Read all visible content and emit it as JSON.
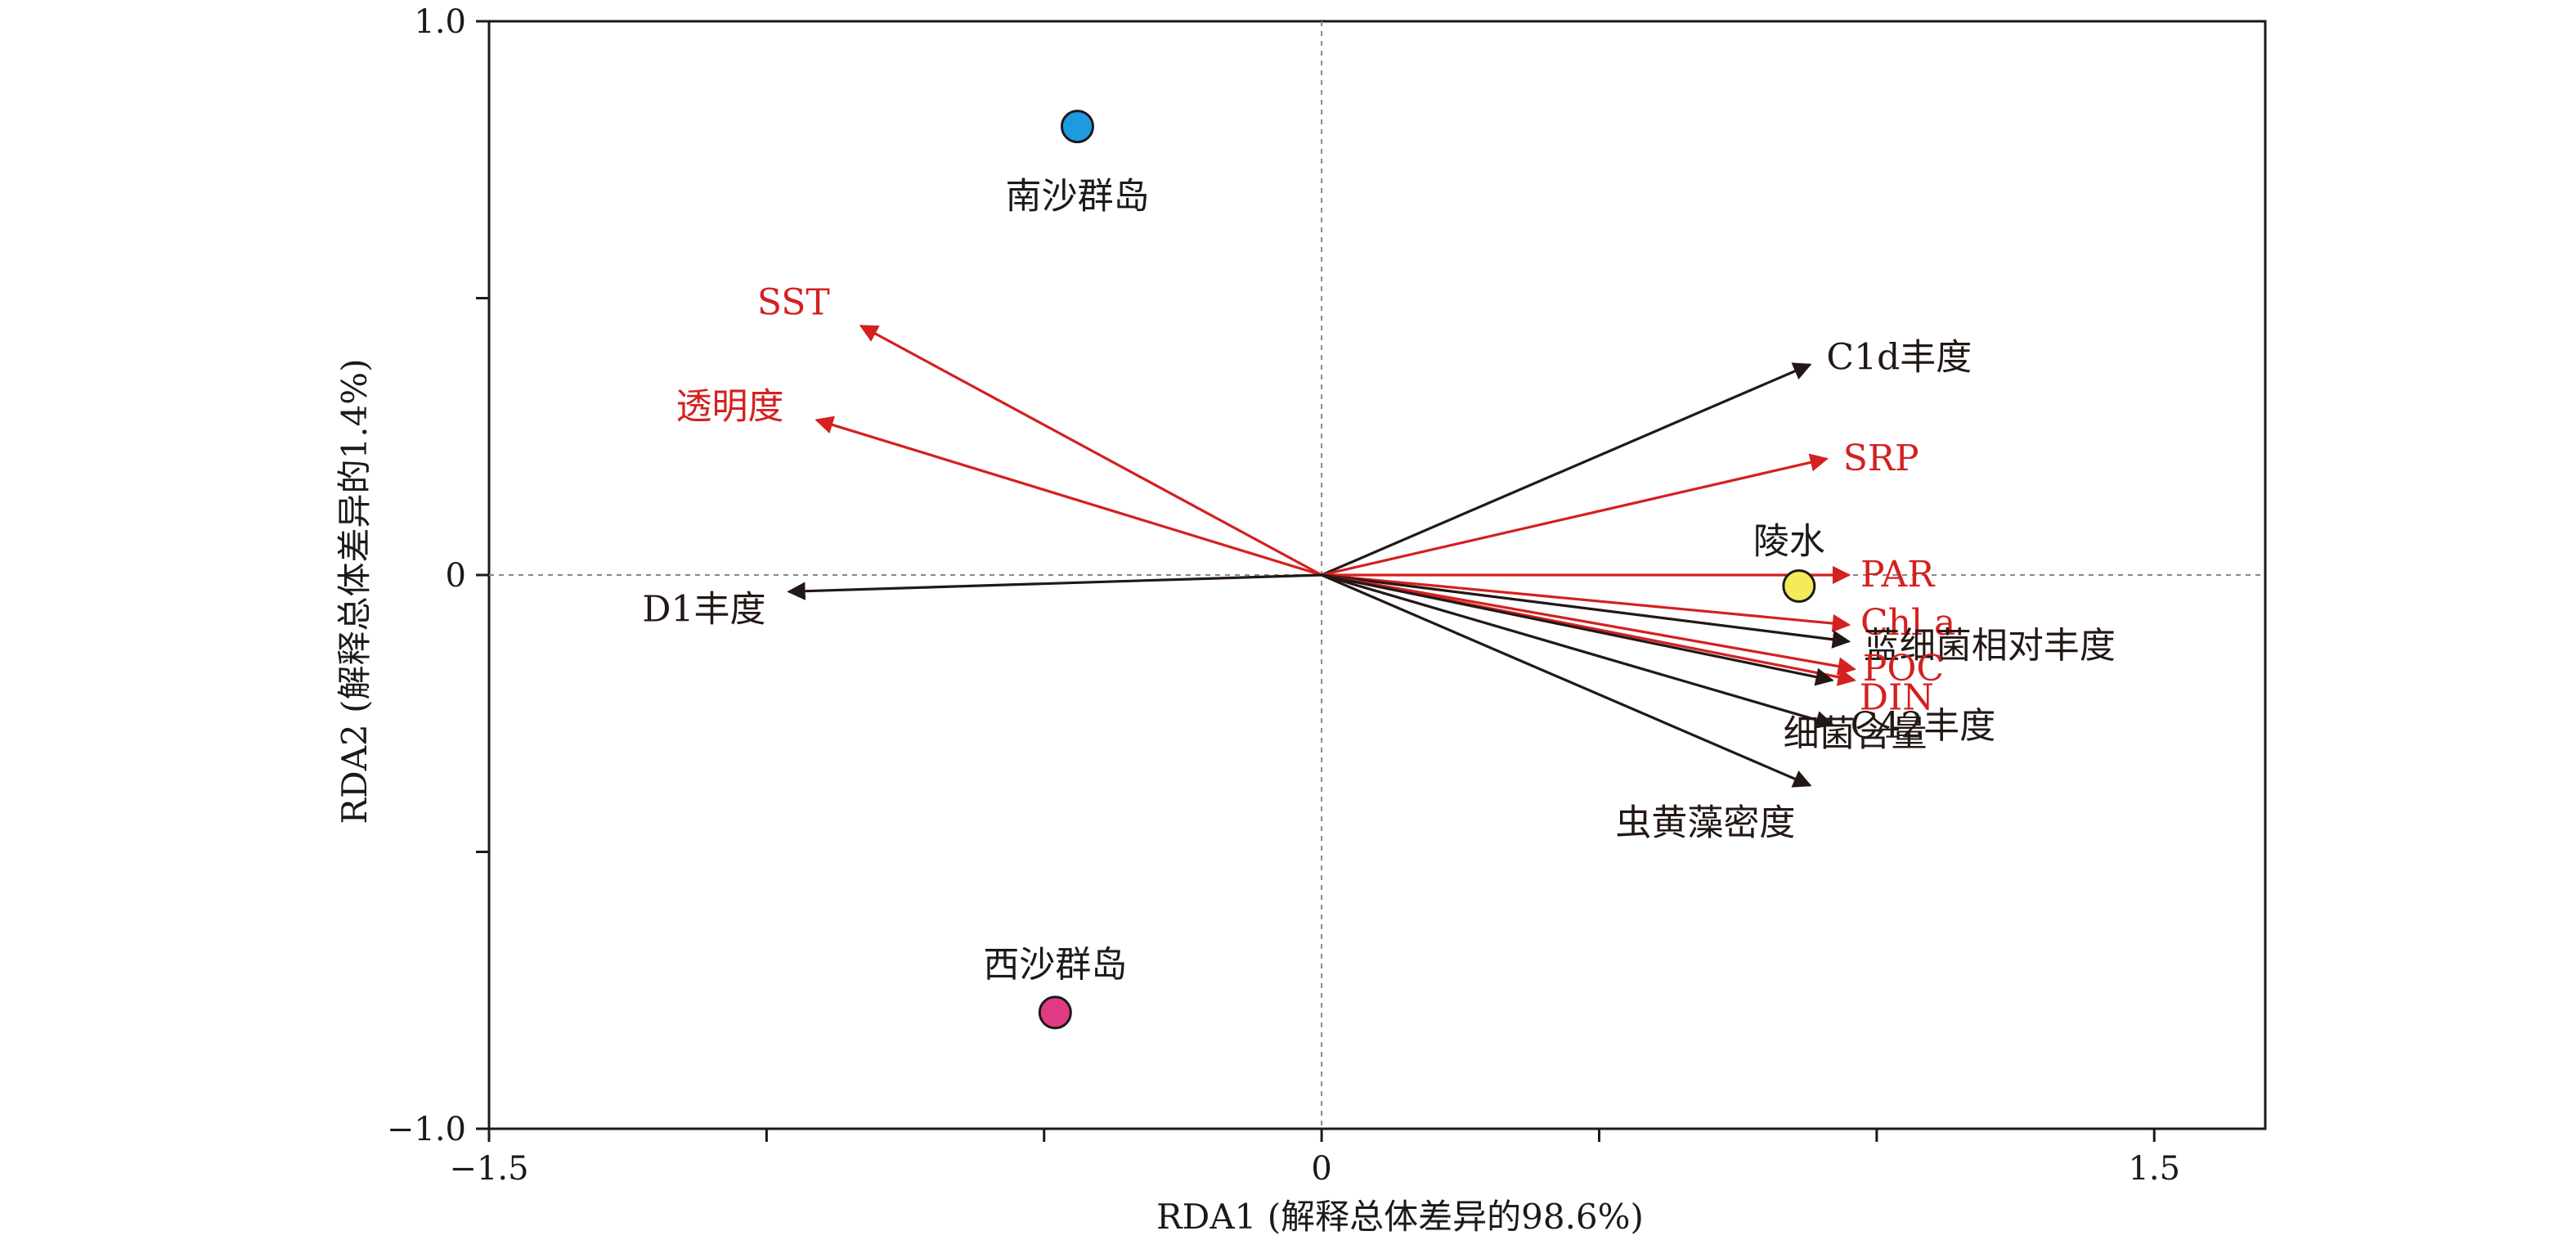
{
  "chart_data": {
    "type": "scatter",
    "subtype": "rda-biplot",
    "xlabel": "RDA1 (解释总体差异的98.6%)",
    "ylabel": "RDA2 (解释总体差异的1.4%)",
    "xlim": [
      -1.5,
      1.7
    ],
    "ylim": [
      -1.0,
      1.0
    ],
    "x_ticks": [
      -1.5,
      0,
      1.5
    ],
    "x_tick_labels": [
      "−1.5",
      "0",
      "1.5"
    ],
    "x_minor_ticks": [
      -1.0,
      -0.5,
      0.5,
      1.0
    ],
    "y_ticks": [
      -1.0,
      0,
      1.0
    ],
    "y_tick_labels": [
      "−1.0",
      "0",
      "1.0"
    ],
    "y_minor_ticks": [
      -0.5,
      0.5
    ],
    "zero_lines": true,
    "grid": false,
    "vectors": [
      {
        "label": "SST",
        "x": -0.83,
        "y": 0.45,
        "color": "#d42020"
      },
      {
        "label": "透明度",
        "x": -0.91,
        "y": 0.28,
        "color": "#d42020"
      },
      {
        "label": "D1丰度",
        "x": -0.96,
        "y": -0.03,
        "color": "#231816"
      },
      {
        "label": "C1d丰度",
        "x": 0.88,
        "y": 0.38,
        "color": "#231816"
      },
      {
        "label": "SRP",
        "x": 0.91,
        "y": 0.21,
        "color": "#d42020"
      },
      {
        "label": "PAR",
        "x": 0.95,
        "y": 0.0,
        "color": "#d42020"
      },
      {
        "label": "Chl a",
        "x": 0.95,
        "y": -0.09,
        "color": "#d42020"
      },
      {
        "label": "蓝细菌相对丰度",
        "x": 0.95,
        "y": -0.12,
        "color": "#231816"
      },
      {
        "label": "POC",
        "x": 0.96,
        "y": -0.17,
        "color": "#d42020"
      },
      {
        "label": "DIN",
        "x": 0.96,
        "y": -0.19,
        "color": "#d42020"
      },
      {
        "label": "C42丰度",
        "x": 0.92,
        "y": -0.27,
        "color": "#231816"
      },
      {
        "label": "细菌含量",
        "x": 0.92,
        "y": -0.19,
        "color": "#231816"
      },
      {
        "label": "虫黄藻密度",
        "x": 0.88,
        "y": -0.38,
        "color": "#231816"
      }
    ],
    "sites": [
      {
        "label": "南沙群岛",
        "x": -0.44,
        "y": 0.81,
        "color": "#1e9be0"
      },
      {
        "label": "陵水",
        "x": 0.86,
        "y": -0.02,
        "color": "#f5ea5a"
      },
      {
        "label": "西沙群岛",
        "x": -0.48,
        "y": -0.79,
        "color": "#e23b86"
      }
    ]
  }
}
